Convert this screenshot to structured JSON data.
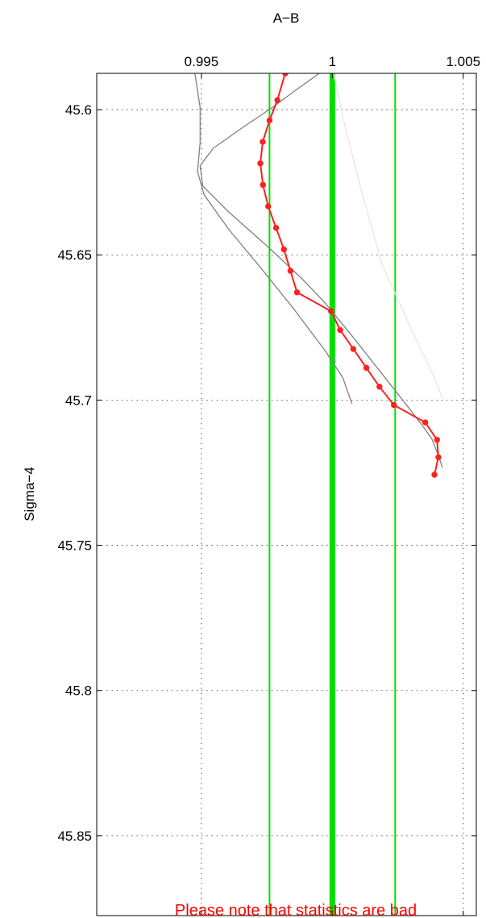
{
  "chart_data": {
    "type": "line",
    "title": "A−B",
    "xlabel": "",
    "ylabel": "Sigma−4",
    "x_axis_position": "top",
    "y_reversed": true,
    "xlim": [
      0.991,
      1.0055
    ],
    "ylim": [
      45.5875,
      45.8775
    ],
    "x_ticks": [
      0.995,
      1,
      1.005
    ],
    "x_tick_labels": [
      "0.995",
      "1",
      "1.005"
    ],
    "y_ticks": [
      45.6,
      45.65,
      45.7,
      45.75,
      45.8,
      45.85
    ],
    "y_tick_labels": [
      "45.6",
      "45.65",
      "45.7",
      "45.75",
      "45.8",
      "45.85"
    ],
    "grid": true,
    "reference_lines": [
      {
        "x": 0.9976,
        "color": "#00e000",
        "width": 2
      },
      {
        "x": 1.0,
        "color": "#00e000",
        "width": 7
      },
      {
        "x": 1.0024,
        "color": "#00e000",
        "width": 2
      }
    ],
    "series": [
      {
        "color": "#ff2020",
        "markers": true,
        "points": [
          [
            0.9982,
            45.5875
          ],
          [
            0.9979,
            45.5967
          ],
          [
            0.9976,
            45.6037
          ],
          [
            0.99734,
            45.6111
          ],
          [
            0.99725,
            45.6185
          ],
          [
            0.99735,
            45.6259
          ],
          [
            0.99755,
            45.6333
          ],
          [
            0.99785,
            45.6407
          ],
          [
            0.99815,
            45.6481
          ],
          [
            0.9984,
            45.6555
          ],
          [
            0.99865,
            45.6629
          ],
          [
            0.99995,
            45.6694
          ],
          [
            1.0003,
            45.6759
          ],
          [
            1.0008,
            45.6824
          ],
          [
            1.0013,
            45.6889
          ],
          [
            1.0018,
            45.6954
          ],
          [
            1.00235,
            45.7017
          ],
          [
            1.00355,
            45.7077
          ],
          [
            1.004,
            45.7137
          ],
          [
            1.00405,
            45.7197
          ],
          [
            1.0039,
            45.7257
          ]
        ]
      },
      {
        "color": "#808080",
        "markers": false,
        "points": [
          [
            0.9995,
            45.5875
          ],
          [
            0.9986,
            45.5933
          ],
          [
            0.9977,
            45.5993
          ],
          [
            0.99655,
            45.6063
          ],
          [
            0.99545,
            45.6133
          ],
          [
            0.99495,
            45.6193
          ],
          [
            0.99505,
            45.6263
          ],
          [
            0.99605,
            45.6353
          ],
          [
            0.99755,
            45.6473
          ],
          [
            0.99885,
            45.6583
          ],
          [
            0.9997,
            45.6663
          ],
          [
            1.0007,
            45.6773
          ],
          [
            1.00175,
            45.6893
          ],
          [
            1.0028,
            45.7013
          ],
          [
            1.0034,
            45.7083
          ],
          [
            1.0038,
            45.7133
          ],
          [
            1.0041,
            45.7203
          ],
          [
            1.0042,
            45.7233
          ]
        ]
      },
      {
        "color": "#808080",
        "markers": false,
        "points": [
          [
            0.99475,
            45.5875
          ],
          [
            0.99495,
            45.5993
          ],
          [
            0.99495,
            45.6113
          ],
          [
            0.99485,
            45.6213
          ],
          [
            0.9951,
            45.6293
          ],
          [
            0.99605,
            45.6413
          ],
          [
            0.99725,
            45.6543
          ],
          [
            0.9985,
            45.6683
          ],
          [
            0.99975,
            45.6833
          ],
          [
            1.0004,
            45.6923
          ],
          [
            1.00075,
            45.7013
          ]
        ]
      },
      {
        "color": "#e6e6e6",
        "markers": false,
        "points": [
          [
            1.00005,
            45.5875
          ],
          [
            1.0005,
            45.6063
          ],
          [
            1.00115,
            45.6293
          ],
          [
            1.0019,
            45.6533
          ],
          [
            1.0031,
            45.6773
          ],
          [
            1.0039,
            45.6923
          ],
          [
            1.0042,
            45.6993
          ]
        ]
      }
    ],
    "annotation": "Please note that statistics are bad"
  }
}
